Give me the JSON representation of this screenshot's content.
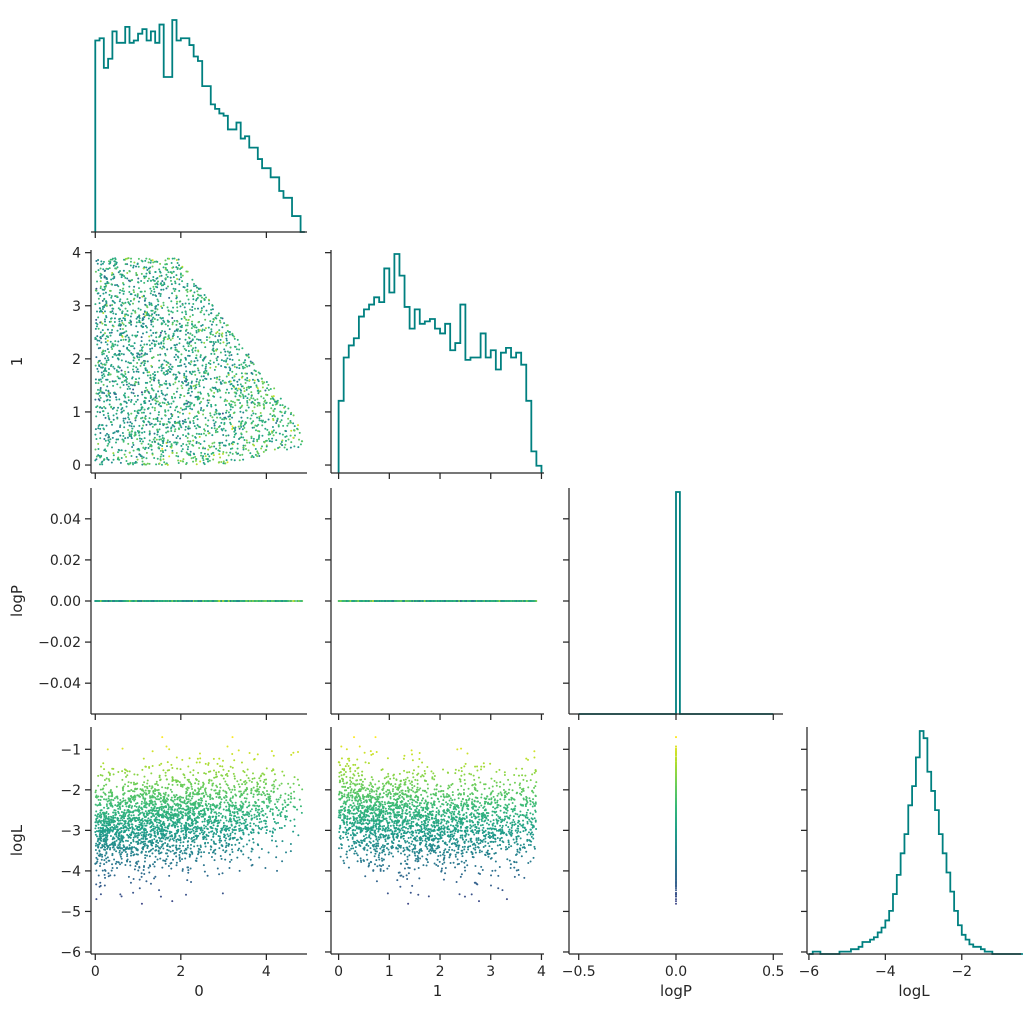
{
  "chart_data": {
    "type": "pairplot",
    "variables": [
      "0",
      "1",
      "logP",
      "logL"
    ],
    "colormap": "viridis",
    "color_by": "logL",
    "histogram_color": "#008080",
    "grid": false,
    "layout": "lower-triangle corner plot",
    "axes": {
      "0": {
        "label": "0",
        "range": [
          -0.1,
          4.95
        ],
        "ticks": [
          0,
          2,
          4
        ],
        "tick_labels": [
          "0",
          "2",
          "4"
        ]
      },
      "1": {
        "label": "1",
        "range": [
          -0.15,
          4.05
        ],
        "ticks": [
          0,
          1,
          2,
          3,
          4
        ],
        "tick_labels": [
          "0",
          "1",
          "2",
          "3",
          "4"
        ]
      },
      "logP": {
        "label": "logP",
        "range": [
          -0.055,
          0.055
        ],
        "range_as_x": [
          -0.55,
          0.55
        ],
        "ticks": [
          -0.04,
          -0.02,
          0.0,
          0.02,
          0.04
        ],
        "tick_labels": [
          "−0.04",
          "−0.02",
          "0.00",
          "0.02",
          "0.04"
        ],
        "ticks_as_x": [
          -0.5,
          0.0,
          0.5
        ],
        "tick_labels_as_x": [
          "−0.5",
          "0.0",
          "0.5"
        ]
      },
      "logL": {
        "label": "logL",
        "range": [
          -6.05,
          -0.45
        ],
        "ticks": [
          -6,
          -5,
          -4,
          -3,
          -2,
          -1
        ],
        "tick_labels": [
          "−6",
          "−5",
          "−4",
          "−3",
          "−2",
          "−1"
        ],
        "ticks_as_x": [
          -6,
          -4,
          -2
        ],
        "tick_labels_as_x": [
          "−6",
          "−4",
          "−2"
        ]
      }
    },
    "histograms": {
      "0": {
        "bin_start": 0.0,
        "bin_width": 0.1,
        "counts": [
          84,
          85,
          72,
          76,
          88,
          83,
          83,
          90,
          83,
          84,
          87,
          89,
          84,
          88,
          83,
          91,
          68,
          68,
          93,
          84,
          85,
          85,
          82,
          77,
          75,
          64,
          64,
          56,
          54,
          52,
          51,
          45,
          45,
          48,
          41,
          42,
          37,
          37,
          32,
          28,
          28,
          24,
          24,
          18,
          15,
          15,
          7,
          7,
          0
        ]
      },
      "1": {
        "bin_start": 0.0,
        "bin_width": 0.1,
        "counts": [
          30,
          48,
          53,
          56,
          65,
          68,
          70,
          73,
          71,
          85,
          75,
          91,
          82,
          69,
          60,
          68,
          62,
          63,
          64,
          60,
          58,
          62,
          51,
          54,
          70,
          47,
          48,
          48,
          58,
          48,
          51,
          43,
          50,
          52,
          48,
          50,
          45,
          30,
          9,
          3
        ]
      },
      "logP": {
        "bin_start": -0.5,
        "bin_width": 0.02,
        "counts": [
          0,
          0,
          0,
          0,
          0,
          0,
          0,
          0,
          0,
          0,
          0,
          0,
          0,
          0,
          0,
          0,
          0,
          0,
          0,
          0,
          0,
          0,
          0,
          0,
          0,
          100,
          0,
          0,
          0,
          0,
          0,
          0,
          0,
          0,
          0,
          0,
          0,
          0,
          0,
          0,
          0,
          0,
          0,
          0,
          0,
          0,
          0,
          0,
          0,
          0
        ]
      },
      "logL": {
        "bin_start": -6.0,
        "bin_width": 0.1,
        "counts": [
          0,
          1,
          1,
          0,
          0,
          0,
          0,
          0,
          1,
          1,
          1,
          2,
          2,
          3,
          5,
          5,
          6,
          7,
          9,
          11,
          14,
          18,
          25,
          33,
          42,
          50,
          62,
          70,
          82,
          93,
          90,
          76,
          68,
          60,
          50,
          42,
          34,
          26,
          18,
          12,
          8,
          6,
          4,
          3,
          3,
          2,
          1,
          1,
          0,
          0,
          0,
          0,
          0,
          0,
          0,
          0
        ]
      }
    },
    "scatter": {
      "n_points": 2600,
      "marker_size": 1.8,
      "description_note": "each scatter point is one sample (x0, x1, logP, logL), coloured by logL"
    }
  }
}
